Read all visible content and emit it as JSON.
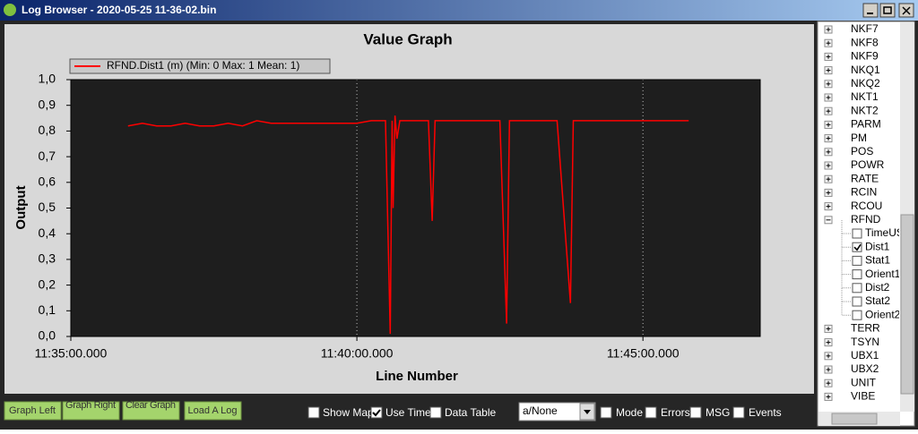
{
  "window": {
    "title": "Log Browser - 2020-05-25 11-36-02.bin"
  },
  "chart_data": {
    "type": "line",
    "title": "Value Graph",
    "x_label": "Line Number",
    "y_label": "Output",
    "x": [
      "11:36:00",
      "11:36:15",
      "11:36:30",
      "11:36:45",
      "11:37:00",
      "11:37:15",
      "11:37:30",
      "11:37:45",
      "11:38:00",
      "11:38:15",
      "11:38:30",
      "11:38:45",
      "11:39:00",
      "11:39:15",
      "11:39:30",
      "11:39:45",
      "11:40:00",
      "11:40:15",
      "11:40:30",
      "11:40:35",
      "11:40:37",
      "11:40:38",
      "11:40:40",
      "11:40:42",
      "11:40:45",
      "11:41:00",
      "11:41:15",
      "11:41:19",
      "11:41:22",
      "11:41:45",
      "11:42:00",
      "11:42:15",
      "11:42:30",
      "11:42:37",
      "11:42:40",
      "11:43:00",
      "11:43:15",
      "11:43:30",
      "11:43:44",
      "11:43:47",
      "11:44:00",
      "11:44:15",
      "11:44:30",
      "11:44:45",
      "11:45:00",
      "11:45:15",
      "11:45:30",
      "11:45:48"
    ],
    "series": [
      {
        "name": "RFND.Dist1 (m) (Min: 0 Max: 1 Mean: 1)",
        "color": "#ff0000",
        "values": [
          0.82,
          0.83,
          0.82,
          0.82,
          0.83,
          0.82,
          0.82,
          0.83,
          0.82,
          0.84,
          0.83,
          0.83,
          0.83,
          0.83,
          0.83,
          0.83,
          0.83,
          0.84,
          0.84,
          0.01,
          0.84,
          0.5,
          0.86,
          0.77,
          0.84,
          0.84,
          0.84,
          0.45,
          0.84,
          0.84,
          0.84,
          0.84,
          0.84,
          0.05,
          0.84,
          0.84,
          0.84,
          0.84,
          0.13,
          0.84,
          0.84,
          0.84,
          0.84,
          0.84,
          0.84,
          0.84,
          0.84,
          0.84
        ]
      }
    ],
    "xlim": [
      "11:35:00",
      "11:47:03"
    ],
    "xticks": [
      {
        "value": "11:35:00",
        "label": "11:35:00.000"
      },
      {
        "value": "11:40:00",
        "label": "11:40:00.000"
      },
      {
        "value": "11:45:00",
        "label": "11:45:00.000"
      }
    ],
    "ylim": [
      0,
      1
    ],
    "yticks": [
      {
        "value": 0,
        "label": "0,0"
      },
      {
        "value": 0.1,
        "label": "0,1"
      },
      {
        "value": 0.2,
        "label": "0,2"
      },
      {
        "value": 0.3,
        "label": "0,3"
      },
      {
        "value": 0.4,
        "label": "0,4"
      },
      {
        "value": 0.5,
        "label": "0,5"
      },
      {
        "value": 0.6,
        "label": "0,6"
      },
      {
        "value": 0.7,
        "label": "0,7"
      },
      {
        "value": 0.8,
        "label": "0,8"
      },
      {
        "value": 0.9,
        "label": "0,9"
      },
      {
        "value": 1,
        "label": "1,0"
      }
    ],
    "grid": true
  },
  "buttons": [
    "Graph Left",
    "Graph Right",
    "Clear Graph",
    "Load A Log"
  ],
  "options": [
    {
      "label": "Show Map",
      "checked": false
    },
    {
      "label": "Use Time",
      "checked": true
    },
    {
      "label": "Data Table",
      "checked": false
    }
  ],
  "dropdown": "a/None",
  "filters": [
    {
      "label": "Mode",
      "checked": false
    },
    {
      "label": "Errors",
      "checked": false
    },
    {
      "label": "MSG",
      "checked": false
    },
    {
      "label": "Events",
      "checked": false
    }
  ],
  "tree": [
    {
      "label": "NKF7"
    },
    {
      "label": "NKF8"
    },
    {
      "label": "NKF9"
    },
    {
      "label": "NKQ1"
    },
    {
      "label": "NKQ2"
    },
    {
      "label": "NKT1"
    },
    {
      "label": "NKT2"
    },
    {
      "label": "PARM"
    },
    {
      "label": "PM"
    },
    {
      "label": "POS"
    },
    {
      "label": "POWR"
    },
    {
      "label": "RATE"
    },
    {
      "label": "RCIN"
    },
    {
      "label": "RCOU"
    },
    {
      "label": "RFND",
      "children": [
        {
          "label": "TimeUS",
          "checked": false
        },
        {
          "label": "Dist1",
          "checked": true
        },
        {
          "label": "Stat1",
          "checked": false
        },
        {
          "label": "Orient1",
          "checked": false
        },
        {
          "label": "Dist2",
          "checked": false
        },
        {
          "label": "Stat2",
          "checked": false
        },
        {
          "label": "Orient2",
          "checked": false
        }
      ]
    },
    {
      "label": "TERR"
    },
    {
      "label": "TSYN"
    },
    {
      "label": "UBX1"
    },
    {
      "label": "UBX2"
    },
    {
      "label": "UNIT"
    },
    {
      "label": "VIBE"
    }
  ]
}
